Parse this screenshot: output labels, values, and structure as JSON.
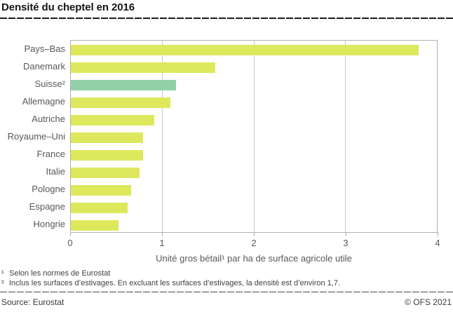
{
  "header": {
    "title": "Densité du cheptel en 2016"
  },
  "chart_data": {
    "type": "bar",
    "orientation": "horizontal",
    "title": "Densité du cheptel en 2016",
    "categories": [
      "Pays–Bas",
      "Danemark",
      "Suisse²",
      "Allemagne",
      "Autriche",
      "Royaume–Uni",
      "France",
      "Italie",
      "Pologne",
      "Espagne",
      "Hongrie"
    ],
    "values": [
      3.8,
      1.58,
      1.15,
      1.09,
      0.91,
      0.79,
      0.79,
      0.75,
      0.66,
      0.62,
      0.52
    ],
    "highlight_index": 2,
    "bar_color": "#dde85d",
    "highlight_color": "#92d1a7",
    "xlabel": "Unité gros bétail¹ par ha de surface agricole utile",
    "ylabel": "",
    "xlim": [
      0,
      4
    ],
    "xticks": [
      0,
      1,
      2,
      3,
      4
    ],
    "xtick_labels": [
      "0",
      "1",
      "2",
      "3",
      "4"
    ],
    "grid": "vertical",
    "legend": "none"
  },
  "footnotes": [
    {
      "marker": "¹",
      "text": "Selon les normes de Eurostat"
    },
    {
      "marker": "²",
      "text": "Inclus les surfaces d’estivages. En excluant les surfaces d’estivages, la densité est d’environ 1,7."
    }
  ],
  "footer": {
    "source": "Source: Eurostat",
    "copyright": "© OFS 2021"
  }
}
